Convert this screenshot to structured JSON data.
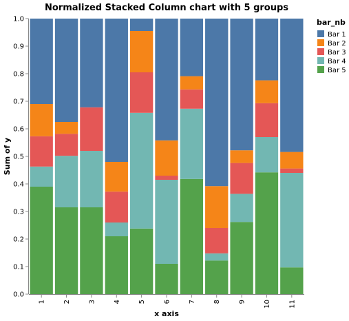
{
  "chart_data": {
    "type": "bar",
    "stacked": true,
    "normalized": true,
    "title": "Normalized Stacked Column chart with 5 groups",
    "xlabel": "x axis",
    "ylabel": "Sum of y",
    "ylim": [
      0,
      1
    ],
    "yticks": [
      "0.0",
      "0.1",
      "0.2",
      "0.3",
      "0.4",
      "0.5",
      "0.6",
      "0.7",
      "0.8",
      "0.9",
      "1.0"
    ],
    "categories": [
      "1",
      "2",
      "3",
      "4",
      "5",
      "6",
      "7",
      "8",
      "9",
      "10",
      "11"
    ],
    "legend_title": "bar_nb",
    "legend_position": "top-right",
    "grid": false,
    "series": [
      {
        "name": "Bar 5",
        "color": "#54a24b",
        "values": [
          0.39,
          0.315,
          0.315,
          0.21,
          0.238,
          0.11,
          0.418,
          0.122,
          0.262,
          0.442,
          0.097
        ]
      },
      {
        "name": "Bar 4",
        "color": "#72b7b2",
        "values": [
          0.073,
          0.187,
          0.205,
          0.05,
          0.42,
          0.305,
          0.255,
          0.026,
          0.102,
          0.128,
          0.343
        ]
      },
      {
        "name": "Bar 3",
        "color": "#e45756",
        "values": [
          0.11,
          0.08,
          0.158,
          0.112,
          0.147,
          0.015,
          0.07,
          0.092,
          0.112,
          0.123,
          0.016
        ]
      },
      {
        "name": "Bar 2",
        "color": "#f58518",
        "values": [
          0.117,
          0.043,
          0.0,
          0.108,
          0.15,
          0.128,
          0.048,
          0.152,
          0.046,
          0.083,
          0.06
        ]
      },
      {
        "name": "Bar 1",
        "color": "#4c78a8",
        "values": [
          0.31,
          0.375,
          0.322,
          0.52,
          0.045,
          0.442,
          0.209,
          0.608,
          0.478,
          0.224,
          0.484
        ]
      }
    ],
    "legend_order": [
      "Bar 1",
      "Bar 2",
      "Bar 3",
      "Bar 4",
      "Bar 5"
    ]
  }
}
